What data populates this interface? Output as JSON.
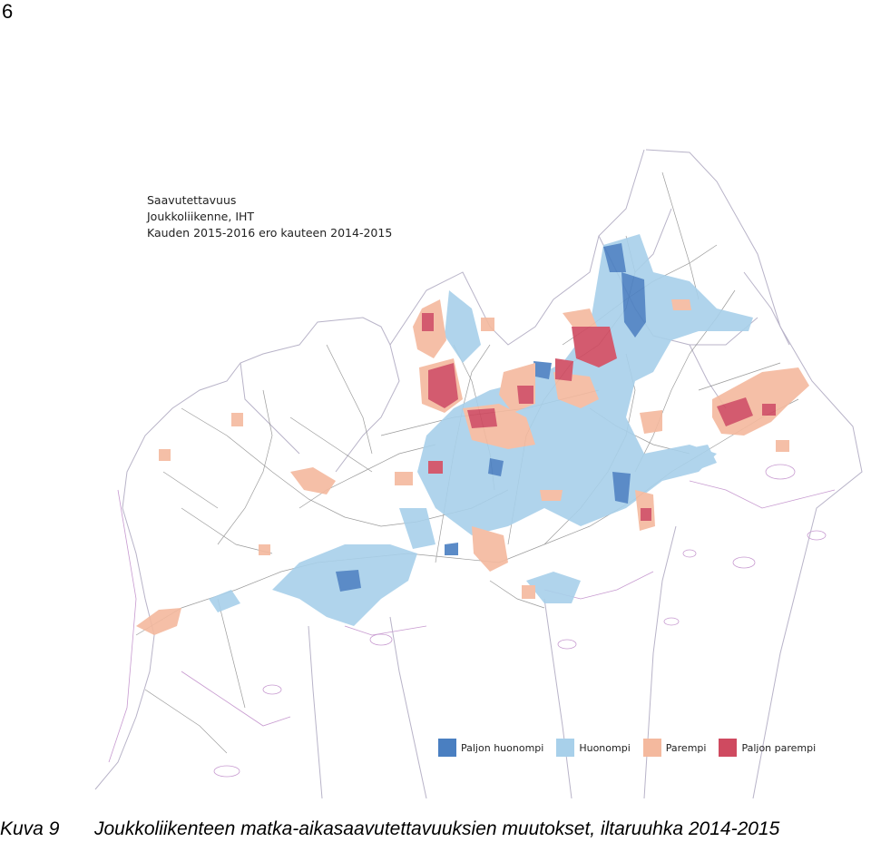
{
  "page_number": "6",
  "map": {
    "title_lines": [
      "Saavutettavuus",
      "Joukkoliikenne, IHT",
      "Kauden 2015-2016 ero kauteen 2014-2015"
    ],
    "legend": [
      {
        "label": "Paljon huonompi",
        "color": "#4a7fc1"
      },
      {
        "label": "Huonompi",
        "color": "#a8d0ea"
      },
      {
        "label": "Parempi",
        "color": "#f4b99e"
      },
      {
        "label": "Paljon parempi",
        "color": "#cf4a60"
      }
    ]
  },
  "caption": {
    "label": "Kuva 9",
    "text": "Joukkoliikenteen matka-aikasaavutettavuuksien muutokset, iltaruuhka 2014-2015"
  }
}
